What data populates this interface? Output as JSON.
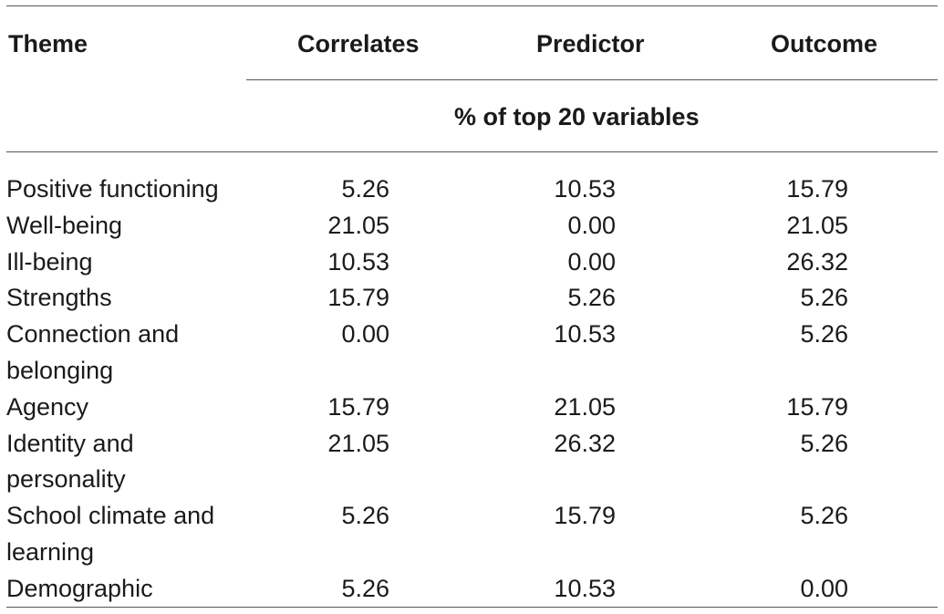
{
  "table": {
    "headers": {
      "theme": "Theme",
      "correlates": "Correlates",
      "predictor": "Predictor",
      "outcome": "Outcome"
    },
    "spanning_header": "% of top 20 variables",
    "rows": [
      {
        "theme": "Positive functioning",
        "lines": 1,
        "correlates": "5.26",
        "predictor": "10.53",
        "outcome": "15.79"
      },
      {
        "theme": "Well-being",
        "lines": 1,
        "correlates": "21.05",
        "predictor": "0.00",
        "outcome": "21.05"
      },
      {
        "theme": "Ill-being",
        "lines": 1,
        "correlates": "10.53",
        "predictor": "0.00",
        "outcome": "26.32"
      },
      {
        "theme": "Strengths",
        "lines": 1,
        "correlates": "15.79",
        "predictor": "5.26",
        "outcome": "5.26"
      },
      {
        "theme": "Connection and belonging",
        "lines": 2,
        "correlates": "0.00",
        "predictor": "10.53",
        "outcome": "5.26"
      },
      {
        "theme": "Agency",
        "lines": 1,
        "correlates": "15.79",
        "predictor": "21.05",
        "outcome": "15.79"
      },
      {
        "theme": "Identity and personality",
        "lines": 2,
        "correlates": "21.05",
        "predictor": "26.32",
        "outcome": "5.26"
      },
      {
        "theme": "School climate and learning",
        "lines": 2,
        "correlates": "5.26",
        "predictor": "15.79",
        "outcome": "5.26"
      },
      {
        "theme": "Demographic",
        "lines": 1,
        "correlates": "5.26",
        "predictor": "10.53",
        "outcome": "0.00"
      }
    ]
  }
}
